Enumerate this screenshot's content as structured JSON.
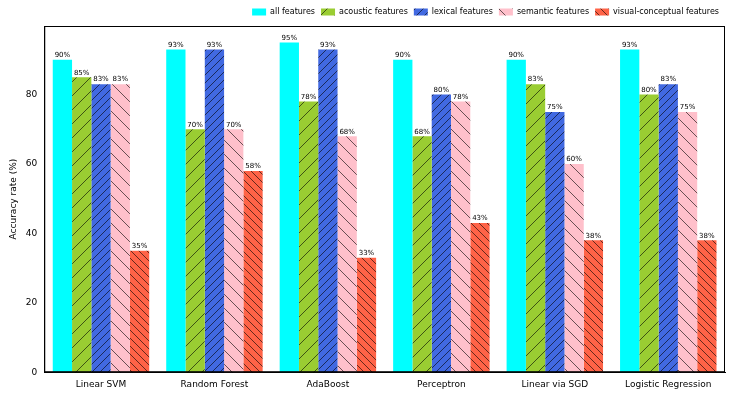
{
  "chart_data": {
    "type": "bar",
    "y_label": "Accuracy rate (%)",
    "categories": [
      "Linear SVM",
      "Random Forest",
      "AdaBoost",
      "Perceptron",
      "Linear via SGD",
      "Logistic Regression"
    ],
    "series": [
      {
        "name": "all features",
        "color": "#00ffff",
        "values": [
          90,
          93,
          95,
          90,
          90,
          93
        ],
        "value_labels": [
          "90%",
          "93%",
          "95%",
          "90%",
          "90%",
          "93%"
        ]
      },
      {
        "name": "acoustic features",
        "color": "#9acd32",
        "values": [
          85,
          70,
          78,
          68,
          83,
          80
        ],
        "value_labels": [
          "85%",
          "70%",
          "78%",
          "68%",
          "83%",
          "80%"
        ]
      },
      {
        "name": "lexical features",
        "color": "#4169e1",
        "values": [
          83,
          93,
          93,
          80,
          75,
          83
        ],
        "value_labels": [
          "83%",
          "93%",
          "93%",
          "80%",
          "75%",
          "83%"
        ]
      },
      {
        "name": "semantic features",
        "color": "#ffc0cb",
        "values": [
          83,
          70,
          68,
          78,
          60,
          75
        ],
        "value_labels": [
          "83%",
          "70%",
          "68%",
          "78%",
          "60%",
          "75%"
        ]
      },
      {
        "name": "visual-conceptual features",
        "color": "#ff6347",
        "values": [
          35,
          58,
          33,
          43,
          38,
          38
        ],
        "value_labels": [
          "35%",
          "58%",
          "33%",
          "43%",
          "38%",
          "38%"
        ]
      }
    ],
    "ylim": [
      0,
      99.75
    ],
    "yticks": [
      0,
      20,
      40,
      60,
      80
    ],
    "grid": false,
    "legend": "upper right",
    "data_labels": true
  }
}
